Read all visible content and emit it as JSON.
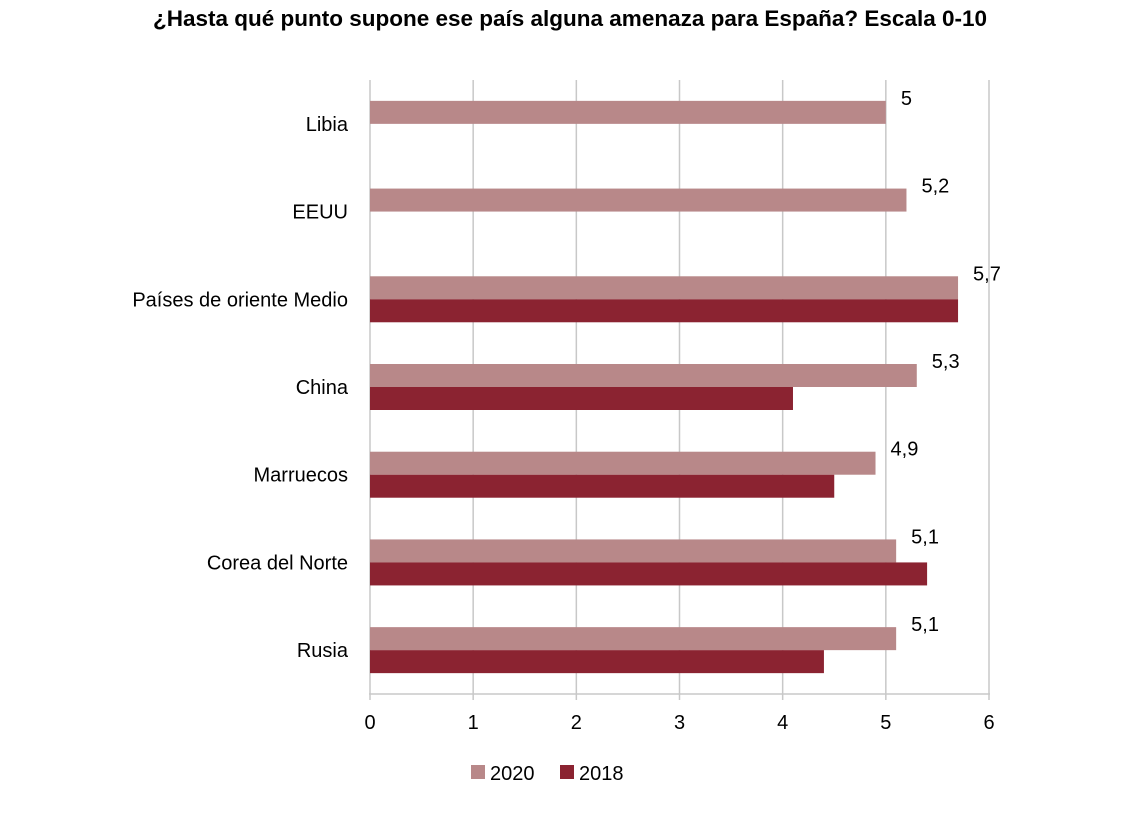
{
  "title": "¿Hasta qué punto supone ese país alguna amenaza para España? Escala 0-10",
  "chart_data": {
    "type": "bar",
    "orientation": "horizontal",
    "title": "¿Hasta qué punto supone ese país alguna amenaza para España? Escala 0-10",
    "categories": [
      "Libia",
      "EEUU",
      "Países de oriente Medio",
      "China",
      "Marruecos",
      "Corea del Norte",
      "Rusia"
    ],
    "series": [
      {
        "name": "2020",
        "color": "#b88889",
        "values": [
          5,
          5.2,
          5.7,
          5.3,
          4.9,
          5.1,
          5.1
        ],
        "labels": [
          "5",
          "5,2",
          "5,7",
          "5,3",
          "4,9",
          "5,1",
          "5,1"
        ]
      },
      {
        "name": "2018",
        "color": "#8b2331",
        "values": [
          null,
          null,
          5.7,
          4.1,
          4.5,
          5.4,
          4.4
        ]
      }
    ],
    "xlim": [
      0,
      6
    ],
    "xticks": [
      "0",
      "1",
      "2",
      "3",
      "4",
      "5",
      "6"
    ],
    "grid": true,
    "legend_position": "bottom",
    "xlabel": "",
    "ylabel": ""
  }
}
